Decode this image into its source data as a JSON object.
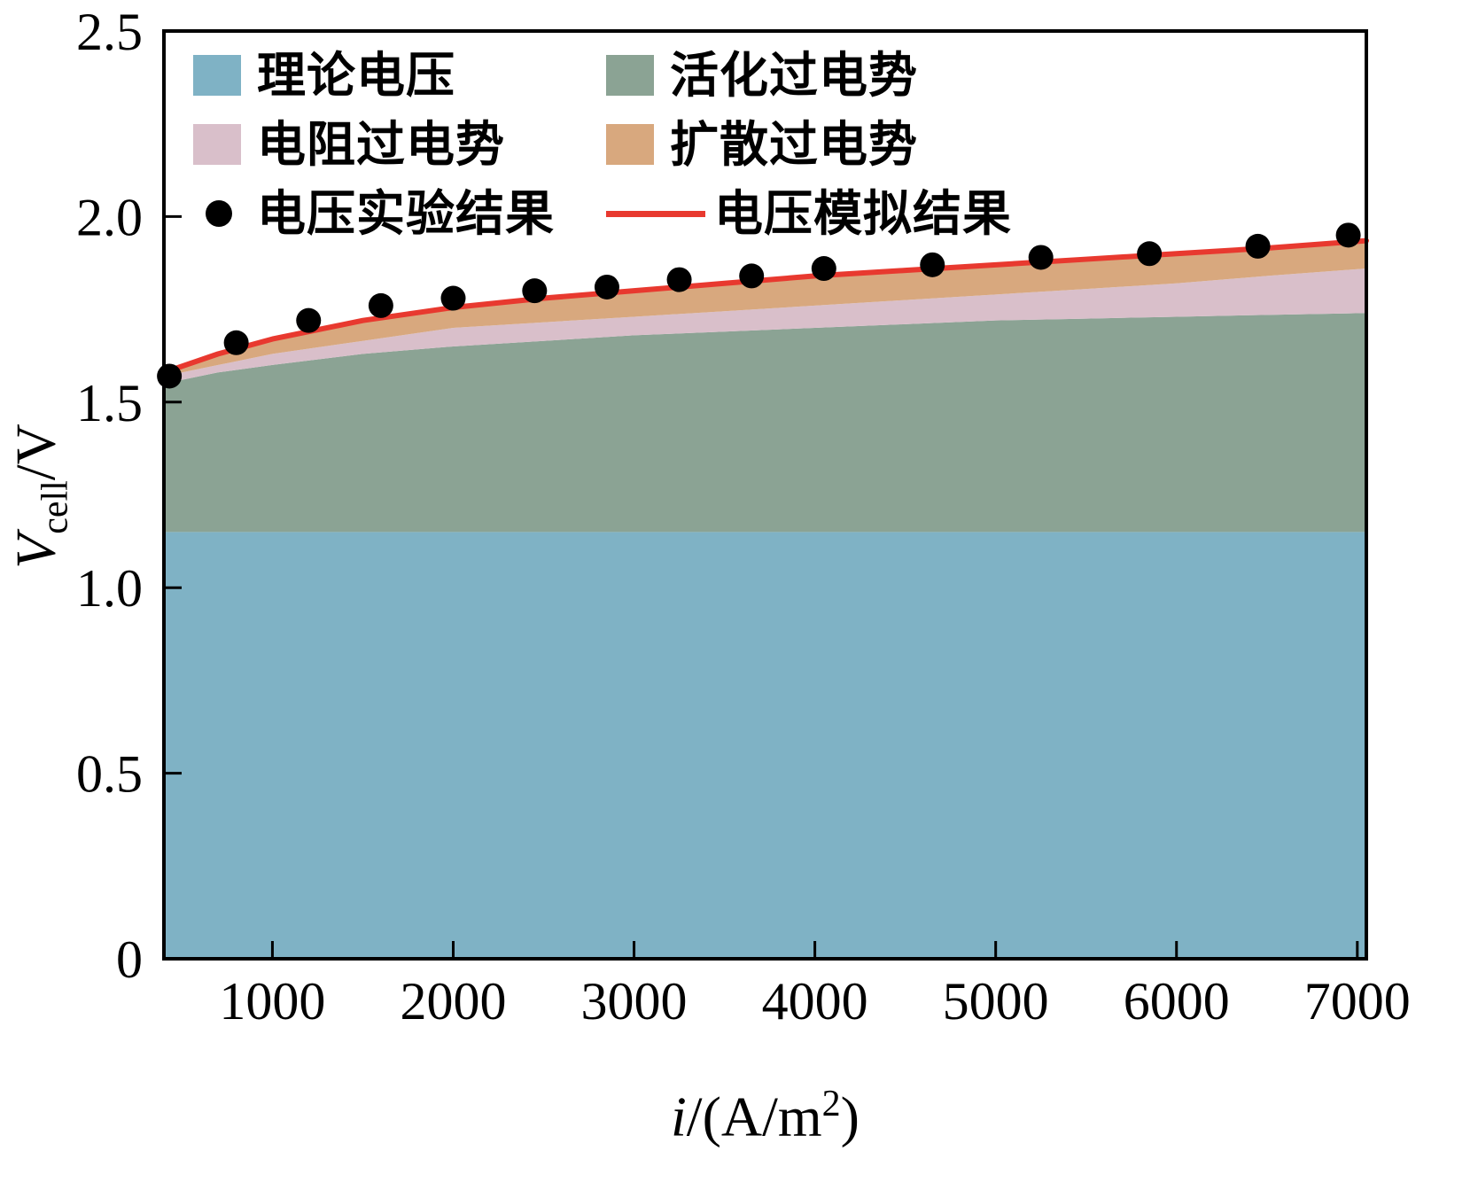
{
  "chart_data": {
    "type": "area",
    "stacked": true,
    "title": "",
    "xlabel": "i/(A/m2)",
    "ylabel": "Vcell/V",
    "xlim": [
      400,
      7050
    ],
    "ylim": [
      0,
      2.5
    ],
    "grid": false,
    "legend_position": "top-left inside",
    "x_ticks": [
      1000,
      2000,
      3000,
      4000,
      5000,
      6000,
      7000
    ],
    "x_tick_labels": [
      "1000",
      "2000",
      "3000",
      "4000",
      "5000",
      "6000",
      "7000"
    ],
    "y_ticks": [
      0,
      0.5,
      1.0,
      1.5,
      2.0,
      2.5
    ],
    "y_tick_labels": [
      "0",
      "0.5",
      "1.0",
      "1.5",
      "2.0",
      "2.5"
    ],
    "x": [
      400,
      700,
      1000,
      1500,
      2000,
      2500,
      3000,
      3500,
      4000,
      4500,
      5000,
      5500,
      6000,
      6500,
      7050
    ],
    "bands": [
      {
        "name": "理论电压",
        "color": "#7fb2c5",
        "top": [
          1.15,
          1.15,
          1.15,
          1.15,
          1.15,
          1.15,
          1.15,
          1.15,
          1.15,
          1.15,
          1.15,
          1.15,
          1.15,
          1.15,
          1.15
        ]
      },
      {
        "name": "活化过电势",
        "color": "#8ba394",
        "top": [
          1.55,
          1.58,
          1.6,
          1.63,
          1.65,
          1.665,
          1.68,
          1.69,
          1.7,
          1.71,
          1.72,
          1.725,
          1.73,
          1.735,
          1.74
        ]
      },
      {
        "name": "电阻过电势",
        "color": "#d9bfca",
        "top": [
          1.57,
          1.6,
          1.63,
          1.665,
          1.7,
          1.715,
          1.73,
          1.745,
          1.76,
          1.775,
          1.79,
          1.805,
          1.82,
          1.84,
          1.86
        ]
      },
      {
        "name": "扩散过电势",
        "color": "#d8a87e",
        "top": [
          1.58,
          1.63,
          1.67,
          1.72,
          1.755,
          1.78,
          1.8,
          1.82,
          1.84,
          1.855,
          1.87,
          1.885,
          1.9,
          1.915,
          1.935
        ]
      }
    ],
    "line": {
      "name": "电压模拟结果",
      "color": "#e8392f",
      "x": [
        400,
        700,
        1000,
        1500,
        2000,
        2500,
        3000,
        3500,
        4000,
        4500,
        5000,
        5500,
        6000,
        6500,
        7050
      ],
      "y": [
        1.58,
        1.63,
        1.67,
        1.72,
        1.755,
        1.78,
        1.8,
        1.82,
        1.84,
        1.855,
        1.87,
        1.885,
        1.9,
        1.915,
        1.935
      ]
    },
    "scatter": {
      "name": "电压实验结果",
      "color": "#000000",
      "points": [
        [
          430,
          1.57
        ],
        [
          800,
          1.66
        ],
        [
          1200,
          1.72
        ],
        [
          1600,
          1.76
        ],
        [
          2000,
          1.78
        ],
        [
          2450,
          1.8
        ],
        [
          2850,
          1.81
        ],
        [
          3250,
          1.83
        ],
        [
          3650,
          1.84
        ],
        [
          4050,
          1.86
        ],
        [
          4650,
          1.87
        ],
        [
          5250,
          1.89
        ],
        [
          5850,
          1.9
        ],
        [
          6450,
          1.92
        ],
        [
          6950,
          1.95
        ]
      ]
    }
  },
  "axes": {
    "x_title": {
      "var": "i",
      "mid": "/(A/m",
      "sup": "2",
      "end": ")"
    },
    "y_title": {
      "var": "V",
      "sub": "cell",
      "end": "/V"
    }
  },
  "legend": {
    "items": [
      {
        "label": "理论电压",
        "type": "patch",
        "color": "#7fb2c5"
      },
      {
        "label": "活化过电势",
        "type": "patch",
        "color": "#8ba394"
      },
      {
        "label": "电阻过电势",
        "type": "patch",
        "color": "#d9bfca"
      },
      {
        "label": "扩散过电势",
        "type": "patch",
        "color": "#d8a87e"
      },
      {
        "label": "电压实验结果",
        "type": "marker",
        "color": "#000000"
      },
      {
        "label": "电压模拟结果",
        "type": "line",
        "color": "#e8392f"
      }
    ]
  }
}
